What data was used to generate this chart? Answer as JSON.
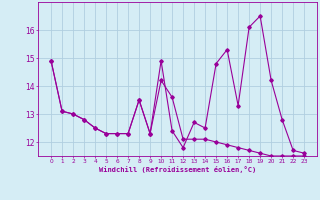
{
  "xlabel": "Windchill (Refroidissement éolien,°C)",
  "x": [
    0,
    1,
    2,
    3,
    4,
    5,
    6,
    7,
    8,
    9,
    10,
    11,
    12,
    13,
    14,
    15,
    16,
    17,
    18,
    19,
    20,
    21,
    22,
    23
  ],
  "line1": [
    14.9,
    13.1,
    13.0,
    12.8,
    12.5,
    12.3,
    12.3,
    12.3,
    13.5,
    12.3,
    14.9,
    12.4,
    11.8,
    12.7,
    12.5,
    14.8,
    15.3,
    13.3,
    16.1,
    16.5,
    14.2,
    12.8,
    11.7,
    11.6
  ],
  "line2": [
    14.9,
    13.1,
    13.0,
    12.8,
    12.5,
    12.3,
    12.3,
    12.3,
    13.5,
    12.3,
    14.2,
    13.6,
    12.1,
    12.1,
    12.1,
    12.0,
    11.9,
    11.8,
    11.7,
    11.6,
    11.5,
    11.5,
    11.5,
    11.5
  ],
  "color": "#990099",
  "bg_color": "#d5edf5",
  "grid_color": "#b0cfe0",
  "ylim": [
    11.5,
    17.0
  ],
  "yticks": [
    12,
    13,
    14,
    15,
    16
  ],
  "xticks": [
    0,
    1,
    2,
    3,
    4,
    5,
    6,
    7,
    8,
    9,
    10,
    11,
    12,
    13,
    14,
    15,
    16,
    17,
    18,
    19,
    20,
    21,
    22,
    23
  ]
}
